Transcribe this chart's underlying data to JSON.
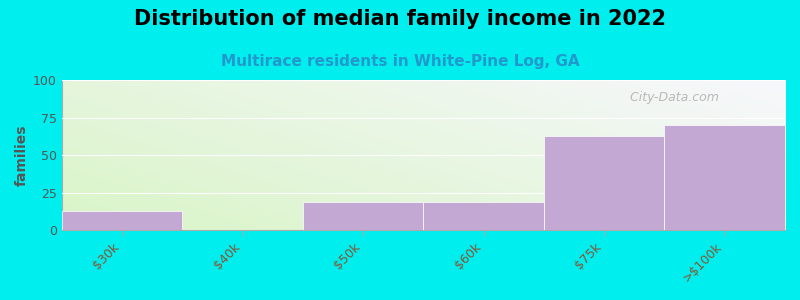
{
  "title": "Distribution of median family income in 2022",
  "subtitle": "Multirace residents in White-Pine Log, GA",
  "categories": [
    "$30k",
    "$40k",
    "$50k",
    "$60k",
    "$75k",
    ">$100k"
  ],
  "values": [
    13,
    0,
    19,
    19,
    63,
    70
  ],
  "bar_color": "#c4a8d4",
  "background_color": "#00eeee",
  "plot_bg_color_tl": "#e8f5e0",
  "plot_bg_color_tr": "#f8f8fa",
  "plot_bg_color_br": "#ffffff",
  "plot_bg_color_bl": "#d0ecc0",
  "ylabel": "families",
  "ylim": [
    0,
    100
  ],
  "yticks": [
    0,
    25,
    50,
    75,
    100
  ],
  "title_fontsize": 15,
  "subtitle_fontsize": 11,
  "tick_label_color": "#885533",
  "watermark": " City-Data.com",
  "bar_left_edges": [
    0,
    1,
    2,
    3,
    4,
    5
  ],
  "bar_widths": [
    1,
    1,
    1,
    1,
    1,
    1
  ],
  "n_bars": 6,
  "xlim": [
    0,
    6
  ]
}
